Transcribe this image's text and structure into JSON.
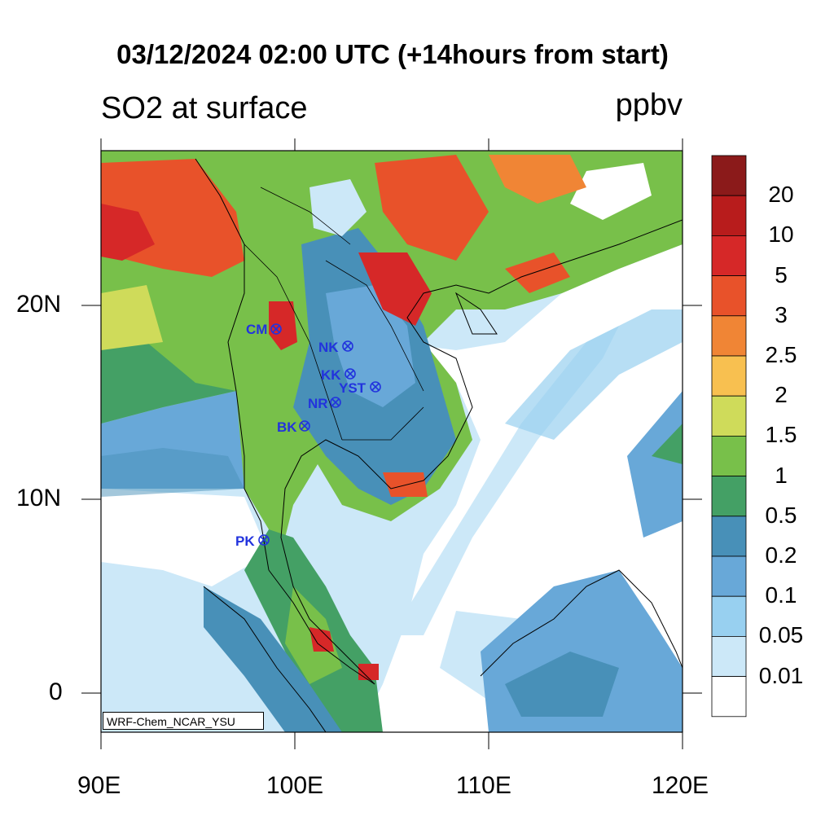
{
  "title": "03/12/2024 02:00 UTC (+14hours from start)",
  "variable": "SO2 at surface",
  "units": "ppbv",
  "credit": "WRF-Chem_NCAR_YSU",
  "x_ticks": [
    "90E",
    "100E",
    "110E",
    "120E"
  ],
  "y_ticks": [
    "20N",
    "10N",
    "0"
  ],
  "colorbar": {
    "levels": [
      "20",
      "10",
      "5",
      "3",
      "2.5",
      "2",
      "1.5",
      "1",
      "0.5",
      "0.2",
      "0.1",
      "0.05",
      "0.01"
    ],
    "colors": [
      "#8B1A1A",
      "#B81C1C",
      "#D62828",
      "#E8522A",
      "#F08535",
      "#F8C050",
      "#CFDB5A",
      "#78C04A",
      "#44A065",
      "#4890B8",
      "#68A8D8",
      "#98D0F0",
      "#CCE8F8",
      "#FFFFFF"
    ]
  },
  "stations": [
    {
      "label": "CM"
    },
    {
      "label": "NK"
    },
    {
      "label": "KK"
    },
    {
      "label": "YST"
    },
    {
      "label": "NR"
    },
    {
      "label": "BK"
    },
    {
      "label": "PK"
    }
  ]
}
